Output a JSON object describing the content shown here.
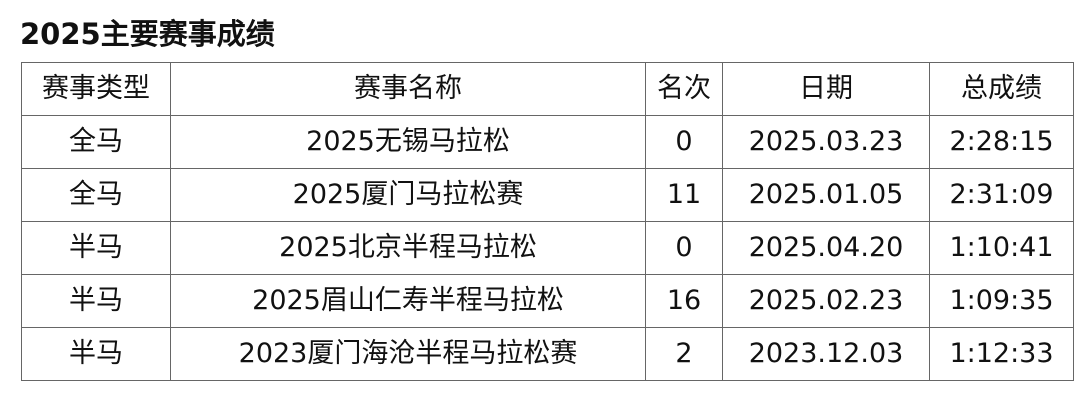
{
  "title": "2025主要赛事成绩",
  "table": {
    "headers": [
      "赛事类型",
      "赛事名称",
      "名次",
      "日期",
      "总成绩"
    ],
    "rows": [
      [
        "全马",
        "2025无锡马拉松",
        "0",
        "2025.03.23",
        "2:28:15"
      ],
      [
        "全马",
        "2025厦门马拉松赛",
        "11",
        "2025.01.05",
        "2:31:09"
      ],
      [
        "半马",
        "2025北京半程马拉松",
        "0",
        "2025.04.20",
        "1:10:41"
      ],
      [
        "半马",
        "2025眉山仁寿半程马拉松",
        "16",
        "2025.02.23",
        "1:09:35"
      ],
      [
        "半马",
        "2023厦门海沧半程马拉松赛",
        "2",
        "2023.12.03",
        "1:12:33"
      ]
    ]
  }
}
